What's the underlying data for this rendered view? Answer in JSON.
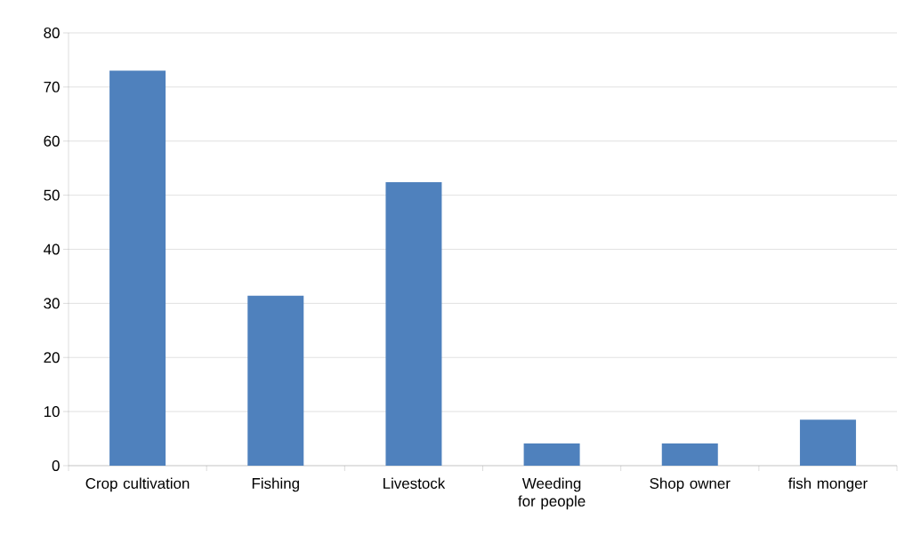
{
  "chart_data": {
    "type": "bar",
    "categories": [
      "Crop cultivation",
      "Fishing",
      "Livestock",
      "Weeding for people",
      "Shop owner",
      "fish monger"
    ],
    "values": [
      73,
      31.4,
      52.4,
      4.1,
      4.1,
      8.5
    ],
    "color": "#4f81bd",
    "ylim": [
      0,
      80
    ],
    "yticks": [
      0,
      10,
      20,
      30,
      40,
      50,
      60,
      70,
      80
    ],
    "grid": "y"
  }
}
